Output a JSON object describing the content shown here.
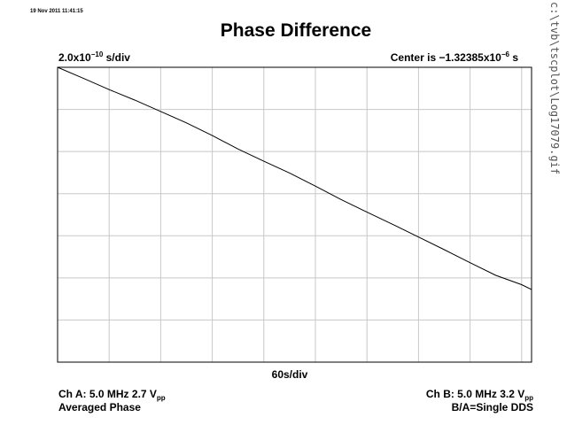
{
  "timestamp": "19 Nov 2011 11:41:15",
  "title": "Phase Difference",
  "scale": {
    "y_per_div_base": "2.0x10",
    "y_per_div_exp": "−10",
    "y_per_div_unit": " s/div",
    "center_prefix": "Center is −1.32385x10",
    "center_exp": "−6",
    "center_unit": " s"
  },
  "x_per_div": "60s/div",
  "footer": {
    "ch_a": "Ch A: 5.0 MHz 2.7 V",
    "ch_a_sub": "pp",
    "mode": "Averaged Phase",
    "ch_b": "Ch B: 5.0 MHz 3.2 V",
    "ch_b_sub": "pp",
    "ratio": "B/A=Single DDS"
  },
  "file_path": "c:\\tvb\\tscplot\\Log17079.gif",
  "chart_data": {
    "type": "line",
    "title": "Phase Difference",
    "xlabel": "60s/div",
    "ylabel": "2.0x10^-10 s/div",
    "grid": true,
    "x_divisions": 9.2,
    "y_divisions": 7,
    "x_range_divs": [
      0,
      9.2
    ],
    "y_range_divs": [
      0,
      7
    ],
    "series": [
      {
        "x_divs": [
          0,
          0.5,
          1,
          1.5,
          2,
          2.5,
          3,
          3.5,
          4,
          4.5,
          5,
          5.5,
          6,
          6.5,
          7,
          7.5,
          8,
          8.5,
          9,
          9.2
        ],
        "y_divs": [
          7.0,
          6.74,
          6.47,
          6.22,
          5.95,
          5.68,
          5.38,
          5.06,
          4.77,
          4.49,
          4.18,
          3.86,
          3.56,
          3.27,
          2.97,
          2.67,
          2.36,
          2.06,
          1.84,
          1.72
        ]
      }
    ],
    "colors": {
      "trace": "#000000",
      "grid": "#c8c8c8",
      "frame": "#000000"
    }
  }
}
